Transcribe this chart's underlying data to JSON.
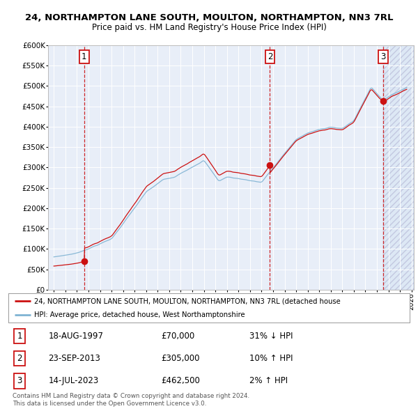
{
  "title": "24, NORTHAMPTON LANE SOUTH, MOULTON, NORTHAMPTON, NN3 7RL",
  "subtitle": "Price paid vs. HM Land Registry's House Price Index (HPI)",
  "sale_dates_num": [
    1997.63,
    2013.73,
    2023.54
  ],
  "sale_prices": [
    70000,
    305000,
    462500
  ],
  "sale_labels": [
    "1",
    "2",
    "3"
  ],
  "sale_date_str": [
    "18-AUG-1997",
    "23-SEP-2013",
    "14-JUL-2023"
  ],
  "sale_price_str": [
    "£70,000",
    "£305,000",
    "£462,500"
  ],
  "sale_hpi_str": [
    "31% ↓ HPI",
    "10% ↑ HPI",
    "2% ↑ HPI"
  ],
  "hpi_color": "#7fb3d3",
  "price_color": "#cc1111",
  "dashed_color": "#cc1111",
  "background_color": "#e8eef8",
  "legend_label_property": "24, NORTHAMPTON LANE SOUTH, MOULTON, NORTHAMPTON, NN3 7RL (detached house",
  "legend_label_hpi": "HPI: Average price, detached house, West Northamptonshire",
  "footer1": "Contains HM Land Registry data © Crown copyright and database right 2024.",
  "footer2": "This data is licensed under the Open Government Licence v3.0.",
  "ylim": [
    0,
    600000
  ],
  "yticks": [
    0,
    50000,
    100000,
    150000,
    200000,
    250000,
    300000,
    350000,
    400000,
    450000,
    500000,
    550000,
    600000
  ],
  "xlim_start": 1994.5,
  "xlim_end": 2026.2
}
